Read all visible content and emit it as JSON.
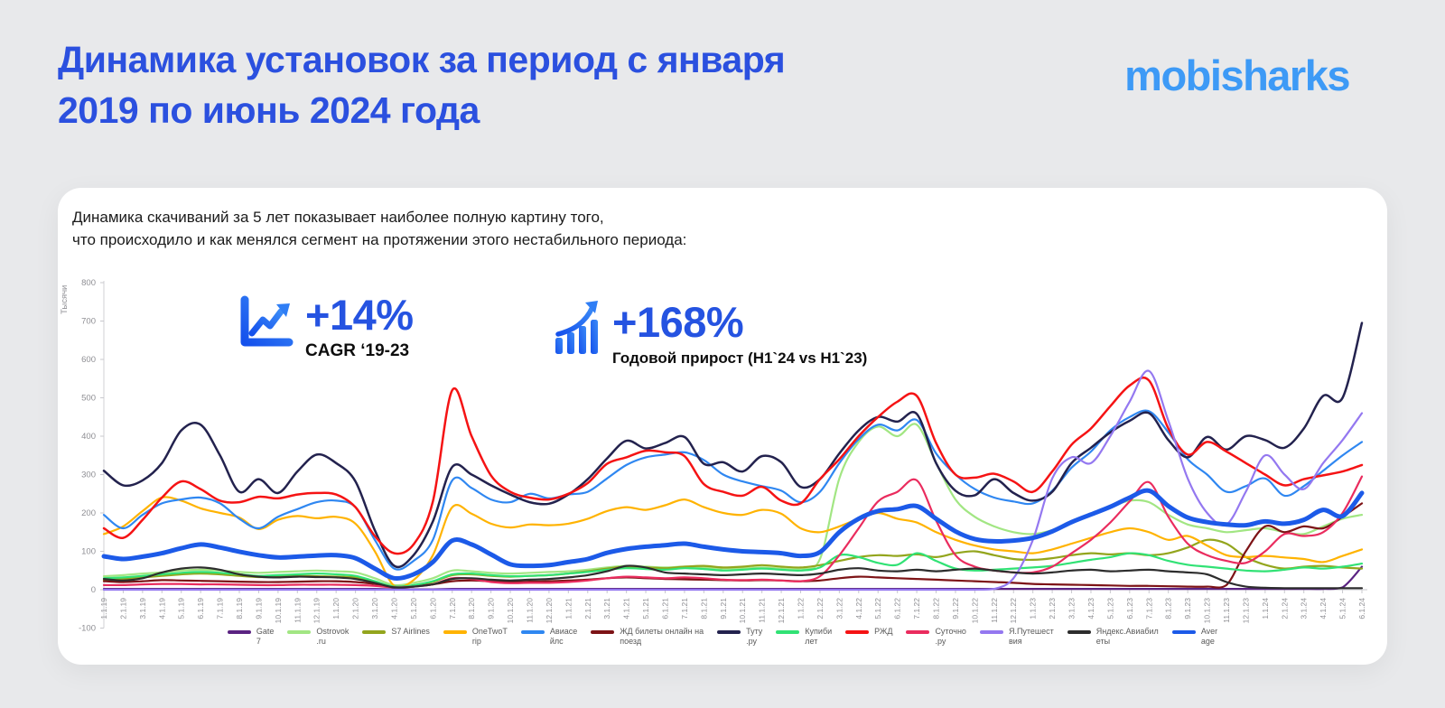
{
  "page": {
    "title_line1": "Динамика установок за период с января",
    "title_line2": "2019 по июнь 2024 года",
    "logo": "mobisharks"
  },
  "card": {
    "description_line1": "Динамика скачиваний за 5 лет показывает наиболее полную картину того,",
    "description_line2": "что происходило и как менялся сегмент на протяжении этого нестабильного периода:",
    "stats": [
      {
        "icon": "trend-line-icon",
        "value": "+14%",
        "label": "CAGR ‘19-23"
      },
      {
        "icon": "bar-growth-icon",
        "value": "+168%",
        "label": "Годовой прирост (H1`24 vs H1`23)"
      }
    ]
  },
  "chart_data": {
    "type": "line",
    "y_axis_title": "Тысячи",
    "ylim": [
      -100,
      800
    ],
    "y_ticks": [
      800,
      700,
      600,
      500,
      400,
      300,
      200,
      100,
      0,
      -100
    ],
    "grid": false,
    "legend_position": "bottom",
    "x": [
      "1.1.19",
      "2.1.19",
      "3.1.19",
      "4.1.19",
      "5.1.19",
      "6.1.19",
      "7.1.19",
      "8.1.19",
      "9.1.19",
      "10.1.19",
      "11.1.19",
      "12.1.19",
      "1.1.20",
      "2.1.20",
      "3.1.20",
      "4.1.20",
      "5.1.20",
      "6.1.20",
      "7.1.20",
      "8.1.20",
      "9.1.20",
      "10.1.20",
      "11.1.20",
      "12.1.20",
      "1.1.21",
      "2.1.21",
      "3.1.21",
      "4.1.21",
      "5.1.21",
      "6.1.21",
      "7.1.21",
      "8.1.21",
      "9.1.21",
      "10.1.21",
      "11.1.21",
      "12.1.21",
      "1.1.22",
      "2.1.22",
      "3.1.22",
      "4.1.22",
      "5.1.22",
      "6.1.22",
      "7.1.22",
      "8.1.22",
      "9.1.22",
      "10.1.22",
      "11.1.22",
      "12.1.22",
      "1.1.23",
      "2.1.23",
      "3.1.23",
      "4.1.23",
      "5.1.23",
      "6.1.23",
      "7.1.23",
      "8.1.23",
      "9.1.23",
      "10.1.23",
      "11.1.23",
      "12.1.23",
      "1.1.24",
      "2.1.24",
      "3.1.24",
      "4.1.24",
      "5.1.24",
      "6.1.24"
    ],
    "series": [
      {
        "name": "Gate 7",
        "legend_lines": [
          "Gate",
          "7"
        ],
        "color": "#5b2382",
        "width": 2.2,
        "values": [
          2,
          2,
          2,
          2,
          2,
          2,
          2,
          2,
          2,
          2,
          2,
          2,
          2,
          2,
          2,
          1,
          1,
          1,
          2,
          2,
          2,
          2,
          2,
          2,
          2,
          2,
          2,
          2,
          2,
          2,
          2,
          2,
          2,
          2,
          2,
          2,
          2,
          2,
          2,
          2,
          2,
          2,
          2,
          2,
          2,
          2,
          2,
          2,
          2,
          2,
          2,
          2,
          2,
          2,
          2,
          2,
          2,
          2,
          2,
          2,
          2,
          2,
          2,
          2,
          6,
          60
        ]
      },
      {
        "name": "Ostrovok.ru",
        "legend_lines": [
          "Ostrovok",
          ".ru"
        ],
        "color": "#a2e683",
        "width": 2.2,
        "values": [
          35,
          38,
          42,
          45,
          50,
          52,
          50,
          46,
          44,
          46,
          48,
          50,
          48,
          45,
          30,
          12,
          18,
          30,
          50,
          48,
          44,
          42,
          44,
          46,
          48,
          52,
          58,
          62,
          60,
          58,
          60,
          58,
          55,
          56,
          58,
          55,
          55,
          80,
          290,
          385,
          425,
          400,
          430,
          330,
          235,
          190,
          165,
          150,
          145,
          155,
          175,
          195,
          215,
          232,
          228,
          195,
          170,
          160,
          150,
          155,
          160,
          150,
          145,
          165,
          185,
          195
        ]
      },
      {
        "name": "S7 Airlines",
        "legend_lines": [
          "S7 Airlines"
        ],
        "color": "#93a51d",
        "width": 2.2,
        "values": [
          25,
          28,
          32,
          36,
          40,
          42,
          40,
          36,
          33,
          34,
          36,
          35,
          34,
          32,
          20,
          6,
          10,
          20,
          38,
          40,
          36,
          34,
          36,
          38,
          42,
          48,
          55,
          60,
          58,
          56,
          60,
          62,
          58,
          60,
          64,
          60,
          58,
          64,
          75,
          85,
          90,
          88,
          92,
          85,
          95,
          100,
          90,
          80,
          78,
          82,
          90,
          95,
          92,
          95,
          90,
          95,
          110,
          130,
          120,
          85,
          65,
          55,
          60,
          62,
          58,
          55
        ]
      },
      {
        "name": "OneTwoTrip",
        "legend_lines": [
          "OneTwoT",
          "rip"
        ],
        "color": "#ffb301",
        "width": 2.2,
        "values": [
          145,
          165,
          205,
          240,
          232,
          212,
          200,
          188,
          158,
          182,
          192,
          186,
          190,
          172,
          100,
          10,
          25,
          90,
          215,
          198,
          172,
          162,
          170,
          168,
          172,
          185,
          205,
          215,
          208,
          220,
          235,
          215,
          200,
          195,
          208,
          198,
          160,
          150,
          165,
          185,
          200,
          185,
          175,
          150,
          130,
          115,
          105,
          100,
          95,
          105,
          120,
          135,
          150,
          160,
          150,
          130,
          140,
          115,
          90,
          85,
          88,
          84,
          80,
          72,
          88,
          105
        ]
      },
      {
        "name": "Авиасейлс",
        "legend_lines": [
          "Авиасе",
          "йлс"
        ],
        "color": "#2f87f1",
        "width": 2.2,
        "values": [
          195,
          160,
          195,
          225,
          235,
          240,
          225,
          185,
          160,
          190,
          210,
          228,
          232,
          215,
          130,
          55,
          75,
          130,
          285,
          265,
          235,
          228,
          250,
          238,
          248,
          255,
          290,
          325,
          345,
          352,
          358,
          338,
          300,
          282,
          270,
          258,
          228,
          255,
          330,
          392,
          430,
          415,
          442,
          355,
          300,
          262,
          240,
          230,
          225,
          258,
          318,
          360,
          415,
          450,
          465,
          410,
          340,
          300,
          255,
          270,
          290,
          245,
          270,
          310,
          350,
          385
        ]
      },
      {
        "name": "ЖД билеты онлайн на поезд",
        "legend_lines": [
          "ЖД билеты онлайн на",
          "поезд"
        ],
        "color": "#7d1316",
        "width": 2.2,
        "values": [
          22,
          20,
          22,
          25,
          24,
          23,
          22,
          21,
          20,
          20,
          21,
          22,
          22,
          20,
          15,
          8,
          10,
          14,
          22,
          24,
          22,
          20,
          21,
          22,
          24,
          26,
          30,
          32,
          30,
          28,
          27,
          26,
          25,
          24,
          25,
          24,
          22,
          24,
          30,
          34,
          32,
          30,
          28,
          26,
          24,
          22,
          20,
          18,
          15,
          14,
          13,
          12,
          11,
          10,
          10,
          9,
          8,
          8,
          12,
          100,
          165,
          150,
          165,
          160,
          190,
          225
        ]
      },
      {
        "name": "Туту.ру",
        "legend_lines": [
          "Туту",
          ".ру"
        ],
        "color": "#23224e",
        "width": 2.5,
        "values": [
          310,
          272,
          285,
          330,
          415,
          430,
          350,
          255,
          288,
          252,
          308,
          352,
          330,
          282,
          155,
          62,
          90,
          178,
          320,
          300,
          272,
          248,
          228,
          224,
          248,
          288,
          342,
          388,
          368,
          382,
          398,
          328,
          332,
          308,
          348,
          332,
          268,
          288,
          355,
          415,
          450,
          438,
          458,
          330,
          258,
          246,
          288,
          252,
          232,
          255,
          330,
          370,
          410,
          440,
          460,
          390,
          345,
          398,
          365,
          400,
          390,
          370,
          420,
          505,
          500,
          695
        ]
      },
      {
        "name": "Купибилет",
        "legend_lines": [
          "Купиби",
          "лет"
        ],
        "color": "#31e275",
        "width": 2.2,
        "values": [
          30,
          32,
          36,
          40,
          44,
          46,
          44,
          40,
          36,
          38,
          40,
          42,
          40,
          36,
          22,
          8,
          12,
          22,
          40,
          42,
          38,
          35,
          36,
          38,
          42,
          46,
          52,
          56,
          54,
          52,
          56,
          54,
          50,
          52,
          55,
          52,
          50,
          58,
          90,
          85,
          70,
          65,
          95,
          75,
          55,
          50,
          52,
          55,
          58,
          62,
          70,
          78,
          85,
          95,
          90,
          75,
          65,
          60,
          55,
          50,
          48,
          52,
          58,
          55,
          60,
          68
        ]
      },
      {
        "name": "РЖД",
        "legend_lines": [
          "РЖД"
        ],
        "color": "#f51314",
        "width": 2.5,
        "values": [
          160,
          135,
          182,
          240,
          282,
          262,
          232,
          228,
          242,
          238,
          248,
          252,
          248,
          215,
          140,
          95,
          118,
          230,
          520,
          400,
          298,
          255,
          240,
          235,
          250,
          278,
          328,
          345,
          362,
          358,
          348,
          275,
          255,
          245,
          268,
          232,
          225,
          288,
          340,
          400,
          450,
          490,
          505,
          382,
          300,
          292,
          302,
          282,
          255,
          308,
          378,
          420,
          478,
          532,
          545,
          420,
          352,
          385,
          360,
          330,
          300,
          272,
          288,
          298,
          308,
          325
        ]
      },
      {
        "name": "Суточно.ру",
        "legend_lines": [
          "Суточно",
          ".ру"
        ],
        "color": "#ea2c5e",
        "width": 2.2,
        "values": [
          12,
          12,
          14,
          15,
          15,
          14,
          14,
          13,
          12,
          12,
          13,
          13,
          13,
          12,
          10,
          6,
          8,
          14,
          30,
          28,
          20,
          17,
          18,
          18,
          20,
          24,
          30,
          34,
          32,
          30,
          32,
          30,
          26,
          25,
          26,
          24,
          22,
          35,
          90,
          160,
          230,
          255,
          285,
          180,
          90,
          60,
          50,
          45,
          45,
          60,
          95,
          130,
          175,
          230,
          280,
          190,
          120,
          90,
          75,
          70,
          100,
          145,
          140,
          150,
          200,
          295
        ]
      },
      {
        "name": "Я.Путешествия",
        "legend_lines": [
          "Я.Путешест",
          "вия"
        ],
        "color": "#9478f0",
        "width": 2.2,
        "values": [
          0,
          0,
          0,
          0,
          0,
          0,
          0,
          0,
          0,
          0,
          0,
          0,
          0,
          0,
          0,
          0,
          0,
          0,
          0,
          0,
          0,
          0,
          0,
          0,
          0,
          0,
          0,
          0,
          0,
          0,
          0,
          0,
          0,
          0,
          0,
          0,
          0,
          0,
          0,
          0,
          0,
          0,
          0,
          0,
          0,
          0,
          2,
          30,
          130,
          290,
          345,
          330,
          400,
          490,
          570,
          440,
          290,
          200,
          170,
          255,
          350,
          300,
          262,
          330,
          390,
          460
        ]
      },
      {
        "name": "Яндекс.Авиабилеты",
        "legend_lines": [
          "Яндекс.Авиабил",
          "еты"
        ],
        "color": "#2d2d2d",
        "width": 2.2,
        "values": [
          28,
          24,
          30,
          45,
          55,
          58,
          52,
          40,
          34,
          32,
          34,
          33,
          32,
          28,
          18,
          6,
          8,
          14,
          28,
          30,
          26,
          24,
          26,
          28,
          32,
          38,
          48,
          62,
          58,
          45,
          42,
          40,
          38,
          40,
          42,
          40,
          38,
          42,
          52,
          56,
          50,
          48,
          52,
          48,
          52,
          55,
          50,
          45,
          42,
          45,
          50,
          52,
          48,
          50,
          52,
          48,
          45,
          40,
          20,
          8,
          5,
          4,
          4,
          4,
          4,
          4
        ]
      },
      {
        "name": "Average",
        "legend_lines": [
          "Aver",
          "age"
        ],
        "color": "#1c5ae8",
        "width": 5,
        "values": [
          87,
          80,
          86,
          95,
          108,
          118,
          110,
          99,
          90,
          84,
          86,
          89,
          90,
          82,
          55,
          30,
          40,
          72,
          128,
          118,
          92,
          66,
          62,
          64,
          72,
          80,
          96,
          106,
          112,
          116,
          120,
          112,
          105,
          100,
          98,
          95,
          88,
          98,
          150,
          185,
          205,
          210,
          218,
          185,
          152,
          132,
          126,
          128,
          135,
          152,
          176,
          196,
          216,
          240,
          258,
          218,
          188,
          176,
          170,
          168,
          178,
          172,
          182,
          208,
          192,
          252
        ]
      }
    ]
  }
}
